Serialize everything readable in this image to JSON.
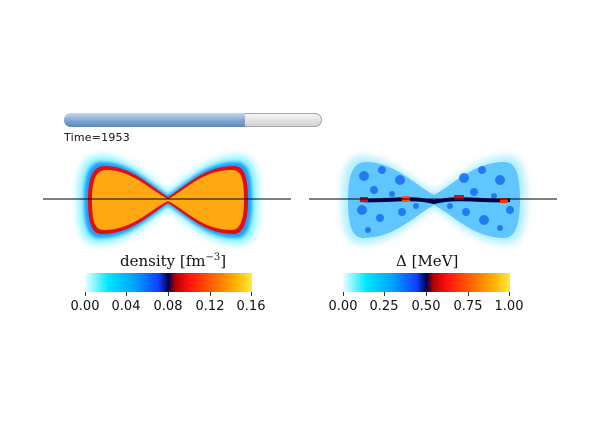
{
  "time": {
    "label": "Time=1953",
    "progress": 0.7
  },
  "panels": [
    {
      "caption_text": "density [fm",
      "caption_sup": "−3",
      "caption_close": "]",
      "ticks": [
        "0.00",
        "0.04",
        "0.08",
        "0.12",
        "0.16"
      ]
    },
    {
      "caption_text": "Δ [MeV]",
      "ticks": [
        "0.00",
        "0.25",
        "0.50",
        "0.75",
        "1.00"
      ]
    }
  ],
  "colors": {
    "progress_fill": "#7fa6cf",
    "high": "#ffb000",
    "mid_dark": "#000050",
    "low": "#00e6ff",
    "background": "#ffffff"
  }
}
